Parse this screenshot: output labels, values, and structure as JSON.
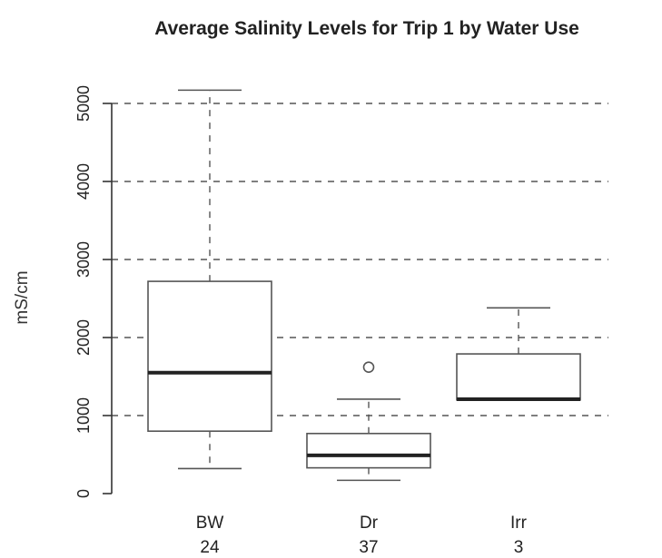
{
  "chart_data": {
    "type": "box",
    "title": "Average Salinity Levels for Trip 1 by Water Use",
    "xlabel": "",
    "ylabel": "mS/cm",
    "ylim": [
      0,
      5250
    ],
    "yticks": [
      0,
      1000,
      2000,
      3000,
      4000,
      5000
    ],
    "grid": {
      "horizontal_dashed": [
        1000,
        2000,
        3000,
        4000,
        5000
      ]
    },
    "categories": [
      "BW",
      "Dr",
      "Irr"
    ],
    "counts": [
      "24",
      "37",
      "3"
    ],
    "boxes": [
      {
        "category": "BW",
        "whisker_low": 320,
        "q1": 800,
        "median": 1550,
        "q3": 2720,
        "whisker_high": 5170,
        "outliers": []
      },
      {
        "category": "Dr",
        "whisker_low": 170,
        "q1": 330,
        "median": 490,
        "q3": 770,
        "whisker_high": 1210,
        "outliers": [
          1620
        ]
      },
      {
        "category": "Irr",
        "whisker_low": 1200,
        "q1": 1200,
        "median": 1210,
        "q3": 1790,
        "whisker_high": 2380,
        "outliers": []
      }
    ],
    "colors": {
      "box_stroke": "#555555",
      "median": "#222222",
      "grid": "#555555",
      "axis": "#333333",
      "text": "#222222"
    }
  }
}
